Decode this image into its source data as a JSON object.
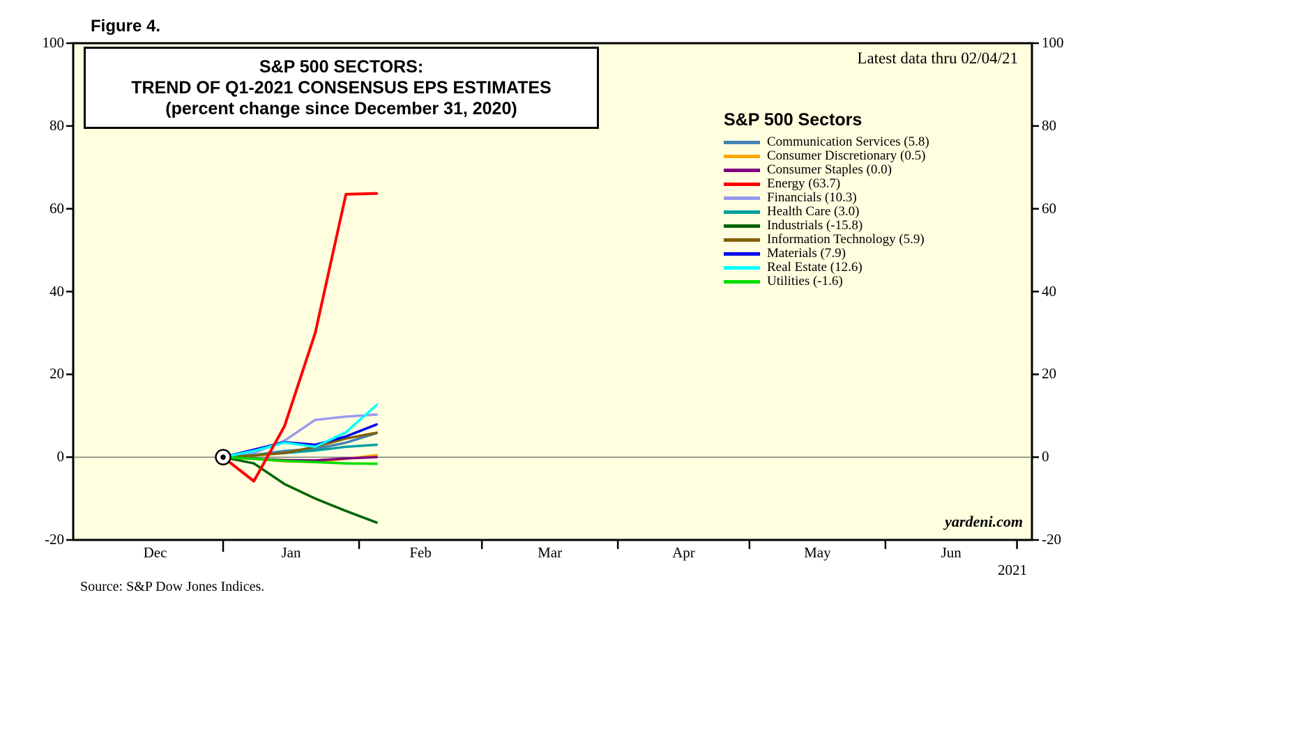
{
  "figure_label": "Figure 4.",
  "title_lines": [
    "S&P 500 SECTORS:",
    "TREND OF Q1-2021 CONSENSUS EPS ESTIMATES",
    "(percent change since December 31, 2020)"
  ],
  "latest_data": "Latest data thru 02/04/21",
  "legend_title": "S&P 500 Sectors",
  "watermark": "yardeni.com",
  "source": "Source: S&P Dow Jones Indices.",
  "year_label": "2021",
  "colors": {
    "plot_bg": "#FFFFE0",
    "axis": "#000000",
    "zero_line": "#555555",
    "page_bg": "#FFFFFF"
  },
  "chart_data": {
    "type": "line",
    "title": "S&P 500 SECTORS: TREND OF Q1-2021 CONSENSUS EPS ESTIMATES (percent change since December 31, 2020)",
    "ylabel": "percent change since December 31, 2020",
    "ylim": [
      -20,
      100
    ],
    "yticks": [
      -20,
      0,
      20,
      40,
      60,
      80,
      100
    ],
    "grid": false,
    "legend_position": "inside-top-right",
    "x_unit": "days since Dec 31, 2020",
    "x": [
      0,
      7,
      14,
      21,
      28,
      35
    ],
    "x_dates": [
      "12/31/20",
      "01/07/21",
      "01/14/21",
      "01/21/21",
      "01/28/21",
      "02/04/21"
    ],
    "x_axis_months": [
      "Dec",
      "Jan",
      "Feb",
      "Mar",
      "Apr",
      "May",
      "Jun"
    ],
    "start_marker": {
      "x": 0,
      "y": 0
    },
    "series": [
      {
        "name": "Communication Services",
        "color": "#4682B4",
        "values": [
          0,
          0.5,
          1.5,
          2.0,
          3.5,
          5.8
        ]
      },
      {
        "name": "Consumer Discretionary",
        "color": "#FFA500",
        "values": [
          0,
          -0.4,
          -1.0,
          -1.2,
          -0.4,
          0.5
        ]
      },
      {
        "name": "Consumer Staples",
        "color": "#800080",
        "values": [
          0,
          -0.4,
          -0.7,
          -0.8,
          -0.3,
          0.0
        ]
      },
      {
        "name": "Energy",
        "color": "#FF0000",
        "values": [
          0,
          -5.8,
          7.5,
          30.0,
          63.5,
          63.7
        ]
      },
      {
        "name": "Financials",
        "color": "#9999EE",
        "values": [
          0,
          1.0,
          4.0,
          9.0,
          9.8,
          10.3
        ]
      },
      {
        "name": "Health Care",
        "color": "#00A0A0",
        "values": [
          0,
          0.5,
          1.0,
          1.6,
          2.5,
          3.0
        ]
      },
      {
        "name": "Industrials",
        "color": "#006400",
        "values": [
          0,
          -1.5,
          -6.5,
          -10.0,
          -13.0,
          -15.8
        ]
      },
      {
        "name": "Information Technology",
        "color": "#806000",
        "values": [
          0,
          0.4,
          1.0,
          2.5,
          4.5,
          5.9
        ]
      },
      {
        "name": "Materials",
        "color": "#0000EE",
        "values": [
          0,
          1.8,
          3.6,
          3.0,
          5.0,
          7.9
        ]
      },
      {
        "name": "Real Estate",
        "color": "#00FFFF",
        "values": [
          0,
          1.5,
          3.5,
          2.5,
          6.0,
          12.6
        ]
      },
      {
        "name": "Utilities",
        "color": "#00DD00",
        "values": [
          0,
          -0.4,
          -0.9,
          -1.2,
          -1.5,
          -1.6
        ]
      }
    ]
  }
}
